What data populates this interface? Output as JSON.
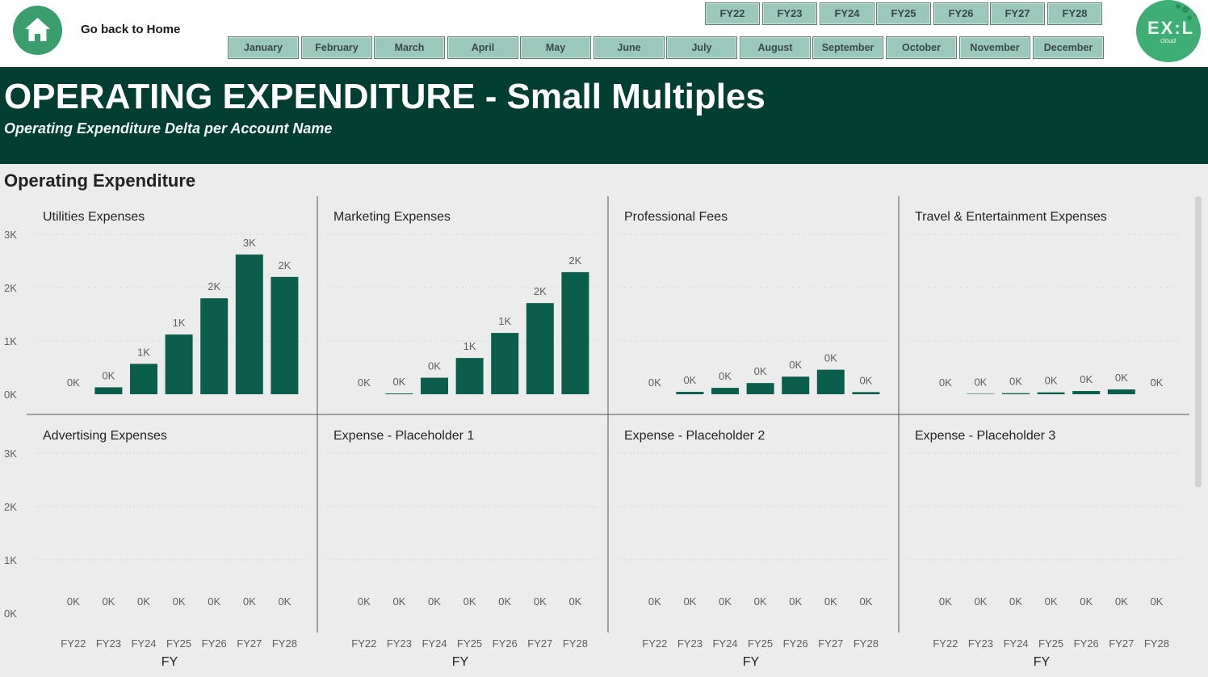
{
  "nav": {
    "home_label": "Go back to Home"
  },
  "fy_slicer": [
    "FY22",
    "FY23",
    "FY24",
    "FY25",
    "FY26",
    "FY27",
    "FY28"
  ],
  "month_slicer": [
    "January",
    "February",
    "March",
    "April",
    "May",
    "June",
    "July",
    "August",
    "September",
    "October",
    "November",
    "December"
  ],
  "logo": {
    "text": "EX:L",
    "sub": "cloud"
  },
  "header": {
    "title": "OPERATING EXPENDITURE - Small Multiples",
    "subtitle": "Operating Expenditure Delta per Account Name"
  },
  "visual": {
    "title": "Operating Expenditure"
  },
  "colors": {
    "bar": "#0b5e4c",
    "banner": "#013d31",
    "slicer": "#9cc8bb",
    "home": "#3a9d6c"
  },
  "chart_data": {
    "type": "bar",
    "xlabel": "FY",
    "ylim": [
      0,
      3000
    ],
    "ytick_labels": [
      "0K",
      "1K",
      "2K",
      "3K"
    ],
    "categories": [
      "FY22",
      "FY23",
      "FY24",
      "FY25",
      "FY26",
      "FY27",
      "FY28"
    ],
    "panels": [
      {
        "name": "Utilities Expenses",
        "values": [
          0,
          130,
          570,
          1120,
          1800,
          2620,
          2200
        ],
        "labels": [
          "0K",
          "0K",
          "1K",
          "1K",
          "2K",
          "3K",
          "2K"
        ]
      },
      {
        "name": "Marketing Expenses",
        "values": [
          0,
          15,
          310,
          680,
          1150,
          1710,
          2290
        ],
        "labels": [
          "0K",
          "0K",
          "0K",
          "1K",
          "1K",
          "2K",
          "2K"
        ]
      },
      {
        "name": "Professional Fees",
        "values": [
          0,
          45,
          120,
          210,
          330,
          460,
          40
        ],
        "labels": [
          "0K",
          "0K",
          "0K",
          "0K",
          "0K",
          "0K",
          "0K"
        ]
      },
      {
        "name": "Travel & Entertainment Expenses",
        "values": [
          0,
          8,
          20,
          35,
          60,
          90,
          0
        ],
        "labels": [
          "0K",
          "0K",
          "0K",
          "0K",
          "0K",
          "0K",
          "0K"
        ]
      },
      {
        "name": "Advertising Expenses",
        "values": [
          0,
          0,
          0,
          0,
          0,
          0,
          0
        ],
        "labels": [
          "0K",
          "0K",
          "0K",
          "0K",
          "0K",
          "0K",
          "0K"
        ]
      },
      {
        "name": "Expense - Placeholder 1",
        "values": [
          0,
          0,
          0,
          0,
          0,
          0,
          0
        ],
        "labels": [
          "0K",
          "0K",
          "0K",
          "0K",
          "0K",
          "0K",
          "0K"
        ]
      },
      {
        "name": "Expense - Placeholder 2",
        "values": [
          0,
          0,
          0,
          0,
          0,
          0,
          0
        ],
        "labels": [
          "0K",
          "0K",
          "0K",
          "0K",
          "0K",
          "0K",
          "0K"
        ]
      },
      {
        "name": "Expense - Placeholder 3",
        "values": [
          0,
          0,
          0,
          0,
          0,
          0,
          0
        ],
        "labels": [
          "0K",
          "0K",
          "0K",
          "0K",
          "0K",
          "0K",
          "0K"
        ]
      }
    ]
  }
}
